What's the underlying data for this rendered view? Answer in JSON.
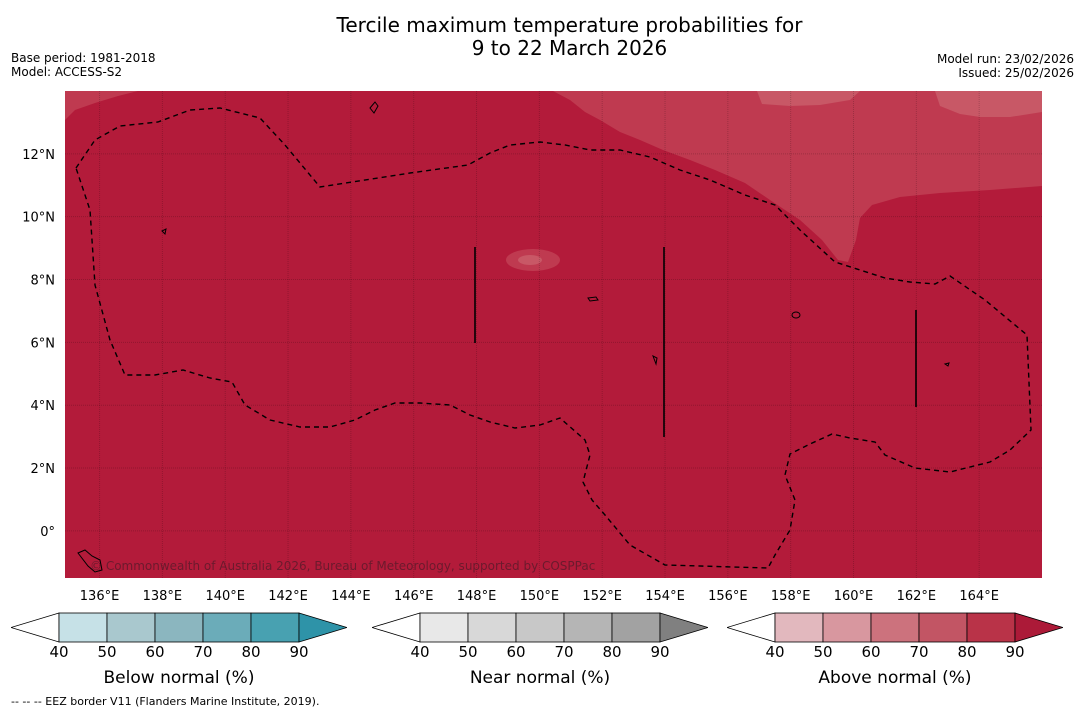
{
  "header": {
    "title_line1": "Tercile maximum temperature probabilities for",
    "title_line2": "9 to 22 March 2026",
    "base_period": "Base period: 1981-2018",
    "model": "Model: ACCESS-S2",
    "model_run": "Model run: 23/02/2026",
    "issued": "Issued: 25/02/2026"
  },
  "chart_data": {
    "type": "heatmap",
    "title": "Tercile maximum temperature probabilities for 9 to 22 March 2026",
    "x_ticks": [
      "136°E",
      "138°E",
      "140°E",
      "142°E",
      "144°E",
      "146°E",
      "148°E",
      "150°E",
      "152°E",
      "154°E",
      "156°E",
      "158°E",
      "160°E",
      "162°E",
      "164°E"
    ],
    "y_ticks": [
      "12°N",
      "10°N",
      "8°N",
      "6°N",
      "4°N",
      "2°N",
      "0°"
    ],
    "x_range_deg": [
      134.9,
      166.0
    ],
    "y_range_deg": [
      -1.5,
      14.0
    ],
    "dominant_category": "Above normal",
    "dominant_range_percent": [
      80,
      90
    ],
    "secondary_range_percent": [
      70,
      80
    ],
    "colors": {
      "above_90": "#b31b3a",
      "above_80": "#bf3a50",
      "above_70": "#c85866"
    },
    "colorbars": [
      {
        "label": "Below normal (%)",
        "ticks": [
          "40",
          "50",
          "60",
          "70",
          "80",
          "90"
        ],
        "colors": [
          "#ffffff",
          "#c6e1e7",
          "#a9c8ce",
          "#8bb6bf",
          "#6bacb9",
          "#48a1b1",
          "#2e93a8"
        ]
      },
      {
        "label": "Near normal (%)",
        "ticks": [
          "40",
          "50",
          "60",
          "70",
          "80",
          "90"
        ],
        "colors": [
          "#ffffff",
          "#e8e8e8",
          "#d8d8d8",
          "#c8c8c8",
          "#b5b5b5",
          "#a2a2a2",
          "#808080"
        ]
      },
      {
        "label": "Above normal (%)",
        "ticks": [
          "40",
          "50",
          "60",
          "70",
          "80",
          "90"
        ],
        "colors": [
          "#ffffff",
          "#e2b8be",
          "#d8979f",
          "#cc727d",
          "#c25564",
          "#b93348",
          "#ac1a38"
        ]
      }
    ]
  },
  "copyright": "© Commonwealth of Australia 2026, Bureau of Meteorology, supported by COSPPac",
  "footnote": "--  --  -- EEZ border V11 (Flanders Marine Institute, 2019)."
}
